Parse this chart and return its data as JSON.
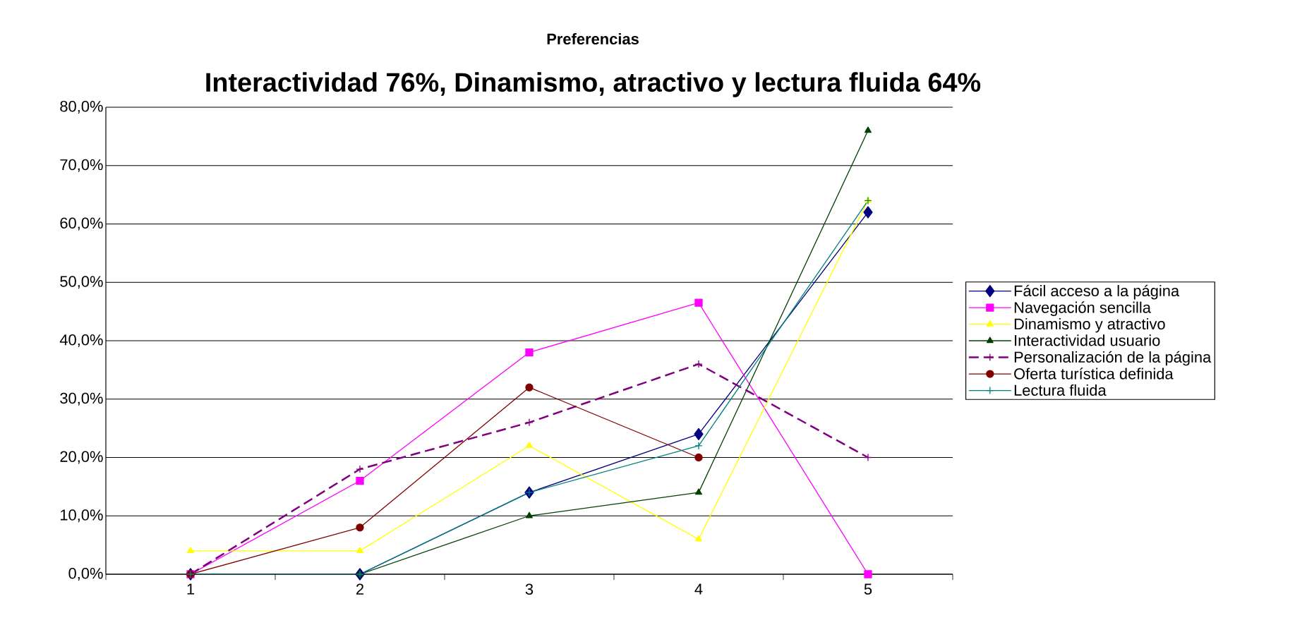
{
  "chart_data": {
    "type": "line",
    "title": "Preferencias",
    "subtitle": "Interactividad 76%, Dinamismo, atractivo y lectura fluida  64%",
    "categories": [
      "1",
      "2",
      "3",
      "4",
      "5"
    ],
    "series": [
      {
        "name": "Fácil acceso a la página",
        "color": "#000080",
        "marker": "diamond",
        "values": [
          0,
          0,
          14,
          24,
          62
        ]
      },
      {
        "name": "Navegación sencilla",
        "color": "#ff00ff",
        "marker": "square",
        "values": [
          0,
          16,
          38,
          46.5,
          0
        ]
      },
      {
        "name": "Dinamismo y atractivo",
        "color": "#ffff00",
        "marker": "triangle",
        "values": [
          4,
          4,
          22,
          6,
          64
        ]
      },
      {
        "name": "Interactividad usuario",
        "color": "#004000",
        "marker": "triangle",
        "values": [
          0,
          0,
          10,
          14,
          76
        ]
      },
      {
        "name": "Personalización de la página",
        "color": "#800080",
        "marker": "cross",
        "line_style": "dashed",
        "values": [
          0,
          18,
          26,
          36,
          20
        ]
      },
      {
        "name": "Oferta turística definida",
        "color": "#800000",
        "marker": "circle",
        "values": [
          0,
          8,
          32,
          20,
          null
        ]
      },
      {
        "name": "Lectura fluida",
        "color": "#008080",
        "marker": "cross",
        "values": [
          0,
          0,
          14,
          22,
          64
        ]
      }
    ],
    "ylim": [
      0,
      80
    ],
    "yticks": [
      {
        "value": 0,
        "label": "0,0%"
      },
      {
        "value": 10,
        "label": "10,0%"
      },
      {
        "value": 20,
        "label": "20,0%"
      },
      {
        "value": 30,
        "label": "30,0%"
      },
      {
        "value": 40,
        "label": "40,0%"
      },
      {
        "value": 50,
        "label": "50,0%"
      },
      {
        "value": 60,
        "label": "60,0%"
      },
      {
        "value": 70,
        "label": "70,0%"
      },
      {
        "value": 80,
        "label": "80,0%"
      }
    ],
    "grid": "y",
    "legend": "right"
  }
}
